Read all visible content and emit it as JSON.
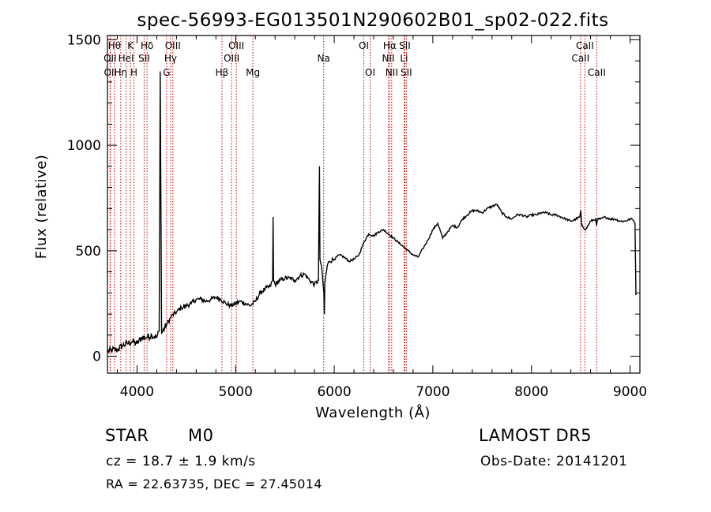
{
  "chart_data": {
    "type": "line",
    "title": "spec-56993-EG013501N290602B01_sp02-022.fits",
    "xlabel": "Wavelength (Å)",
    "ylabel": "Flux (relative)",
    "xlim": [
      3700,
      9100
    ],
    "ylim": [
      -80,
      1520
    ],
    "xticks": [
      4000,
      5000,
      6000,
      7000,
      8000,
      9000
    ],
    "yticks": [
      0,
      500,
      1000,
      1500
    ],
    "line_color": "#000000",
    "marker_color": "#cc0000",
    "spectrum": {
      "x": [
        3700,
        3750,
        3800,
        3850,
        3900,
        3950,
        4000,
        4050,
        4100,
        4150,
        4200,
        4225,
        4235,
        4250,
        4300,
        4350,
        4400,
        4450,
        4500,
        4550,
        4600,
        4650,
        4700,
        4750,
        4800,
        4850,
        4900,
        4950,
        5000,
        5050,
        5100,
        5150,
        5200,
        5250,
        5300,
        5350,
        5375,
        5380,
        5385,
        5400,
        5450,
        5500,
        5550,
        5600,
        5650,
        5700,
        5750,
        5800,
        5840,
        5850,
        5855,
        5870,
        5895,
        5900,
        5905,
        5930,
        5950,
        6000,
        6050,
        6100,
        6150,
        6200,
        6250,
        6300,
        6350,
        6400,
        6450,
        6500,
        6550,
        6600,
        6650,
        6700,
        6750,
        6800,
        6850,
        6900,
        6950,
        7000,
        7050,
        7100,
        7150,
        7200,
        7250,
        7300,
        7350,
        7400,
        7450,
        7500,
        7550,
        7600,
        7650,
        7700,
        7750,
        7800,
        7850,
        7900,
        7950,
        8000,
        8050,
        8100,
        8150,
        8200,
        8250,
        8300,
        8350,
        8400,
        8450,
        8490,
        8500,
        8510,
        8550,
        8600,
        8650,
        8660,
        8670,
        8700,
        8750,
        8800,
        8850,
        8900,
        8950,
        9000,
        9020,
        9040,
        9050,
        9060
      ],
      "y": [
        20,
        30,
        30,
        50,
        60,
        70,
        60,
        90,
        90,
        100,
        90,
        120,
        1350,
        110,
        150,
        190,
        210,
        230,
        240,
        250,
        270,
        270,
        260,
        270,
        280,
        270,
        250,
        240,
        250,
        260,
        250,
        240,
        260,
        300,
        320,
        330,
        360,
        660,
        360,
        340,
        360,
        370,
        370,
        360,
        380,
        390,
        360,
        340,
        360,
        900,
        460,
        430,
        300,
        200,
        350,
        430,
        450,
        460,
        480,
        470,
        450,
        460,
        480,
        540,
        580,
        570,
        590,
        600,
        580,
        560,
        540,
        520,
        500,
        480,
        470,
        510,
        550,
        600,
        630,
        560,
        590,
        620,
        610,
        650,
        670,
        690,
        690,
        680,
        700,
        710,
        720,
        680,
        660,
        650,
        670,
        670,
        660,
        670,
        670,
        680,
        680,
        670,
        670,
        660,
        650,
        640,
        650,
        660,
        690,
        620,
        600,
        640,
        650,
        620,
        650,
        650,
        660,
        650,
        650,
        640,
        640,
        650,
        650,
        640,
        630,
        290
      ]
    },
    "lines": [
      {
        "x": 3727,
        "label": "OII",
        "row": 2
      },
      {
        "x": 3730,
        "label": "OII",
        "row": 3
      },
      {
        "x": 3771,
        "label": "Hθ",
        "row": 1
      },
      {
        "x": 3835,
        "label": "Hη",
        "row": 3
      },
      {
        "x": 3889,
        "label": "HeI",
        "row": 2
      },
      {
        "x": 3934,
        "label": "K",
        "row": 1
      },
      {
        "x": 3969,
        "label": "H",
        "row": 3
      },
      {
        "x": 4072,
        "label": "SII",
        "row": 2
      },
      {
        "x": 4102,
        "label": "Hδ",
        "row": 1
      },
      {
        "x": 4300,
        "label": "G",
        "row": 3
      },
      {
        "x": 4340,
        "label": "Hγ",
        "row": 2
      },
      {
        "x": 4363,
        "label": "OIII",
        "row": 1
      },
      {
        "x": 4861,
        "label": "Hβ",
        "row": 3
      },
      {
        "x": 4959,
        "label": "OIII",
        "row": 2
      },
      {
        "x": 5007,
        "label": "OIII",
        "row": 1
      },
      {
        "x": 5175,
        "label": "Mg",
        "row": 3
      },
      {
        "x": 5893,
        "label": "Na",
        "row": 2
      },
      {
        "x": 6300,
        "label": "OI",
        "row": 1
      },
      {
        "x": 6364,
        "label": "OI",
        "row": 3
      },
      {
        "x": 6548,
        "label": "NII",
        "row": 2
      },
      {
        "x": 6563,
        "label": "Hα",
        "row": 1
      },
      {
        "x": 6583,
        "label": "NII",
        "row": 3
      },
      {
        "x": 6708,
        "label": "Li",
        "row": 2
      },
      {
        "x": 6716,
        "label": "SII",
        "row": 1
      },
      {
        "x": 6731,
        "label": "SII",
        "row": 3
      },
      {
        "x": 8498,
        "label": "CaII",
        "row": 2
      },
      {
        "x": 8542,
        "label": "CaII",
        "row": 1
      },
      {
        "x": 8662,
        "label": "CaII",
        "row": 3
      }
    ]
  },
  "info": {
    "object_class": "STAR",
    "subclass": "M0",
    "survey": "LAMOST DR5",
    "redshift": "cz = 18.7 ± 1.9 km/s",
    "obs_date": "Obs-Date: 20141201",
    "coords": "RA =  22.63735, DEC =  27.45014"
  }
}
